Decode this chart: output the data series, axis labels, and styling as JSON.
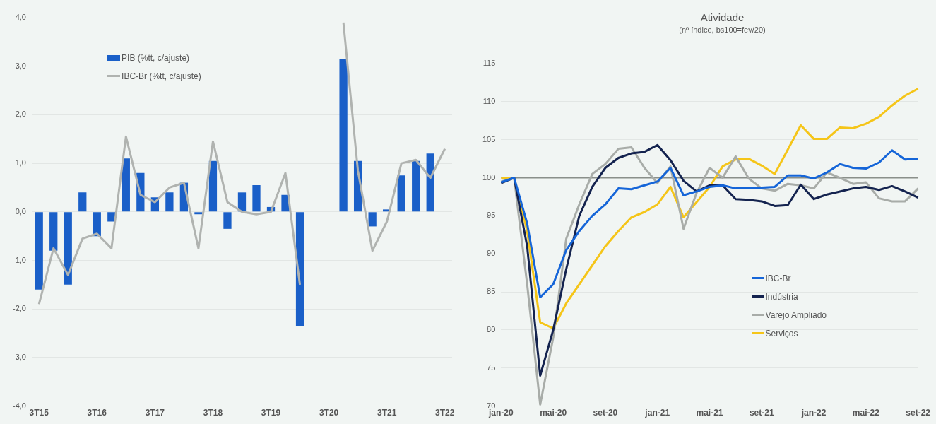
{
  "chart_data": [
    {
      "type": "bar",
      "categories": [
        "3T15",
        null,
        null,
        null,
        "3T16",
        null,
        null,
        null,
        "3T17",
        null,
        null,
        null,
        "3T18",
        null,
        null,
        null,
        "3T19",
        null,
        null,
        null,
        "3T20",
        null,
        null,
        null,
        "3T21",
        null,
        null,
        null,
        "3T22"
      ],
      "series": [
        {
          "name": "PIB (%tt, c/ajuste)",
          "type": "bar",
          "color": "#1a5fc8",
          "values": [
            -1.6,
            -0.8,
            -1.5,
            0.4,
            -0.5,
            -0.2,
            1.1,
            0.8,
            0.3,
            0.4,
            0.6,
            -0.05,
            1.05,
            -0.35,
            0.4,
            0.55,
            0.1,
            0.35,
            -2.35,
            null,
            null,
            3.15,
            1.05,
            -0.3,
            0.05,
            0.75,
            1.05,
            1.2,
            null
          ]
        },
        {
          "name": "IBC-Br (%tt, c/ajuste)",
          "type": "line",
          "color": "#b0b3b0",
          "values": [
            -1.9,
            -0.75,
            -1.3,
            -0.55,
            -0.45,
            -0.75,
            1.55,
            0.35,
            0.2,
            0.5,
            0.6,
            -0.75,
            1.45,
            0.2,
            0.0,
            -0.05,
            0.0,
            0.8,
            -1.5,
            null,
            null,
            3.9,
            0.85,
            -0.8,
            -0.2,
            1.0,
            1.07,
            0.7,
            1.3
          ]
        }
      ],
      "ylim": [
        -4,
        4
      ],
      "yticks": [
        {
          "value": -4,
          "label": "-4,0"
        },
        {
          "value": -3,
          "label": "-3,0"
        },
        {
          "value": -2,
          "label": "-2,0"
        },
        {
          "value": -1,
          "label": "-1,0"
        },
        {
          "value": 0,
          "label": "0,0"
        },
        {
          "value": 1,
          "label": "1,0"
        },
        {
          "value": 2,
          "label": "2,0"
        },
        {
          "value": 3,
          "label": "3,0"
        },
        {
          "value": 4,
          "label": "4,0"
        }
      ],
      "grid": "y",
      "legend": "top left"
    },
    {
      "type": "line",
      "title": "Atividade",
      "subtitle": "(nº índice, bs100=fev/20)",
      "categories": [
        "jan-20",
        null,
        null,
        null,
        "mai-20",
        null,
        null,
        null,
        "set-20",
        null,
        null,
        null,
        "jan-21",
        null,
        null,
        null,
        "mai-21",
        null,
        null,
        null,
        "set-21",
        null,
        null,
        null,
        "jan-22",
        null,
        null,
        null,
        "mai-22",
        null,
        null,
        null,
        "set-22"
      ],
      "series": [
        {
          "name": "IBC-Br",
          "color": "#1565d8",
          "values": [
            99.4,
            100,
            94,
            84.3,
            86,
            90.5,
            93,
            95,
            96.5,
            98.6,
            98.5,
            99,
            99.5,
            101.3,
            97.7,
            98.2,
            98.8,
            99,
            98.6,
            98.6,
            98.7,
            98.8,
            100.3,
            100.3,
            99.9,
            100.7,
            101.8,
            101.3,
            101.2,
            102,
            103.6,
            102.4,
            102.5
          ]
        },
        {
          "name": "Indústria",
          "color": "#14234f",
          "values": [
            99.3,
            100,
            91,
            74,
            80,
            88,
            95,
            98.8,
            101.3,
            102.6,
            103.2,
            103.4,
            104.3,
            102.3,
            99.6,
            98.2,
            99,
            99,
            97.2,
            97.1,
            96.9,
            96.3,
            96.4,
            99.1,
            97.2,
            97.8,
            98.2,
            98.6,
            98.8,
            98.4,
            98.9,
            98.2,
            97.4
          ]
        },
        {
          "name": "Varejo Ampliado",
          "color": "#a8aca8",
          "values": [
            99.5,
            100,
            86,
            70.2,
            79,
            92,
            96.5,
            100.5,
            101.8,
            103.8,
            104,
            101.3,
            99.3,
            101.5,
            93.3,
            98,
            101.3,
            100,
            102.8,
            99.9,
            98.6,
            98.3,
            99.2,
            99,
            98.6,
            100.7,
            100,
            99.2,
            99.4,
            97.3,
            96.9,
            96.9,
            98.6
          ]
        },
        {
          "name": "Serviços",
          "color": "#f5c518",
          "values": [
            100,
            100,
            93,
            81,
            80.2,
            83.5,
            86,
            88.5,
            91,
            93,
            94.8,
            95.5,
            96.5,
            98.8,
            94.8,
            96.8,
            98.8,
            101.5,
            102.4,
            102.5,
            101.6,
            100.5,
            103.7,
            106.9,
            105.1,
            105.1,
            106.6,
            106.5,
            107.1,
            108,
            109.5,
            110.8,
            111.7
          ]
        }
      ],
      "ylim": [
        70,
        115
      ],
      "yticks": [
        70,
        75,
        80,
        85,
        90,
        95,
        100,
        105,
        110,
        115
      ],
      "ref_lines": [
        {
          "axis": "y",
          "value": 100,
          "color": "#8a8f8a"
        }
      ],
      "grid": "y",
      "legend": "right"
    }
  ]
}
